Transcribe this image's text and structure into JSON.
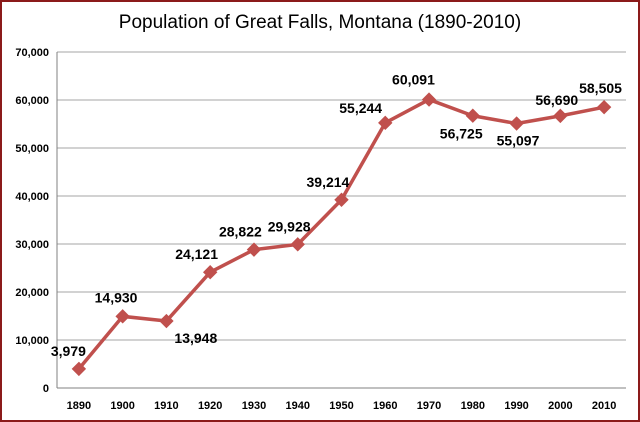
{
  "chart_data": {
    "type": "line",
    "title": "Population of Great Falls, Montana (1890-2010)",
    "xlabel": "",
    "ylabel": "",
    "ylim": [
      0,
      70000
    ],
    "yticks": [
      "0",
      "10,000",
      "20,000",
      "30,000",
      "40,000",
      "50,000",
      "60,000",
      "70,000"
    ],
    "grid": true,
    "legend": "none",
    "categories": [
      "1890",
      "1900",
      "1910",
      "1920",
      "1930",
      "1940",
      "1950",
      "1960",
      "1970",
      "1980",
      "1990",
      "2000",
      "2010"
    ],
    "series": [
      {
        "color": "#c0504d",
        "values": [
          3979,
          14930,
          13948,
          24121,
          28822,
          29928,
          39214,
          55244,
          60091,
          56725,
          55097,
          56690,
          58505
        ],
        "labels": [
          "3,979",
          "14,930",
          "13,948",
          "24,121",
          "28,822",
          "29,928",
          "39,214",
          "55,244",
          "60,091",
          "56,725",
          "55,097",
          "56,690",
          "58,505"
        ]
      }
    ],
    "colors": {
      "frame": "#8b1a1a",
      "grid": "#a6a6a6",
      "axis": "#808080"
    }
  }
}
